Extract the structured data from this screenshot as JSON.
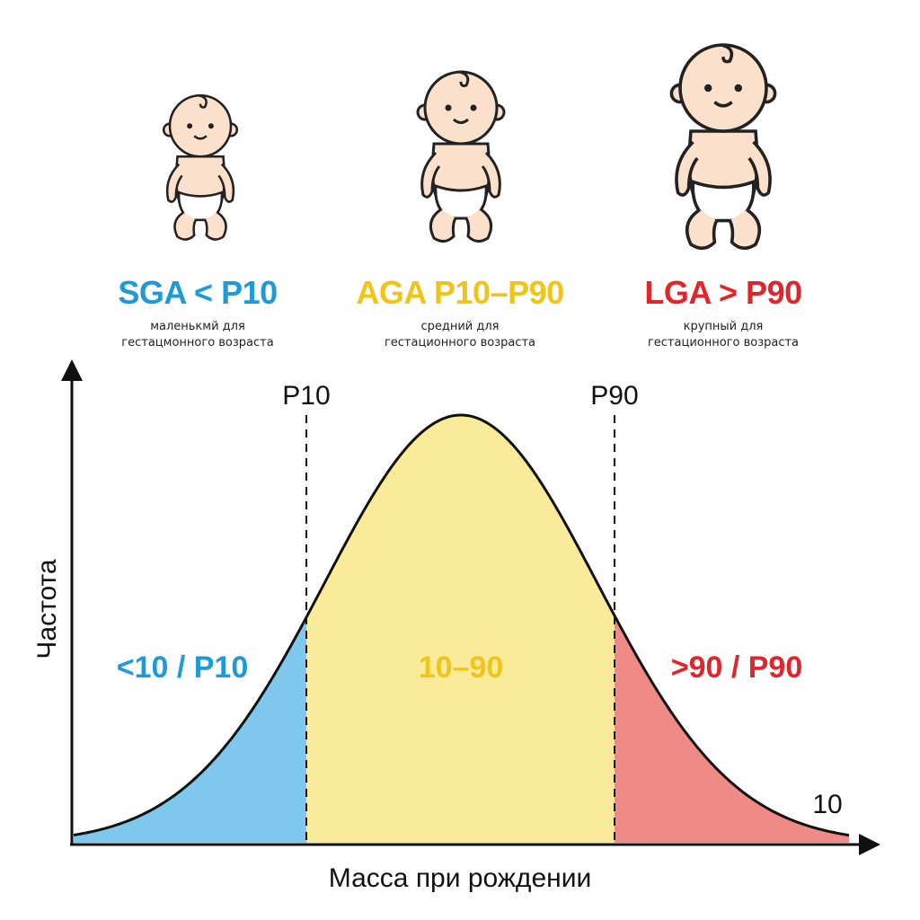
{
  "categories": [
    {
      "title": "SGA < P10",
      "subtitle_1": "маленькмй для",
      "subtitle_2": "гестацмонного возраста",
      "color": "#1e9ad6",
      "icon": "small-baby-icon"
    },
    {
      "title": "AGA P10–P90",
      "subtitle_1": "средний для",
      "subtitle_2": "гестационного возраста",
      "color": "#f0c419",
      "icon": "medium-baby-icon"
    },
    {
      "title": "LGA > P90",
      "subtitle_1": "крупный для",
      "subtitle_2": "гестационного возраста",
      "color": "#e0262b",
      "icon": "large-baby-icon"
    }
  ],
  "chart": {
    "ylabel": "Частота",
    "xlabel": "Масса при рождении",
    "p10_label": "P10",
    "p90_label": "P90",
    "end_label": "10",
    "regions": [
      {
        "label": "<10 / P10",
        "fill": "#7dc8ec",
        "text_color": "#1e9ad6"
      },
      {
        "label": "10–90",
        "fill": "#f9eb9a",
        "text_color": "#f0c419"
      },
      {
        "label": ">90 / P90",
        "fill": "#f08a86",
        "text_color": "#e0262b"
      }
    ]
  }
}
